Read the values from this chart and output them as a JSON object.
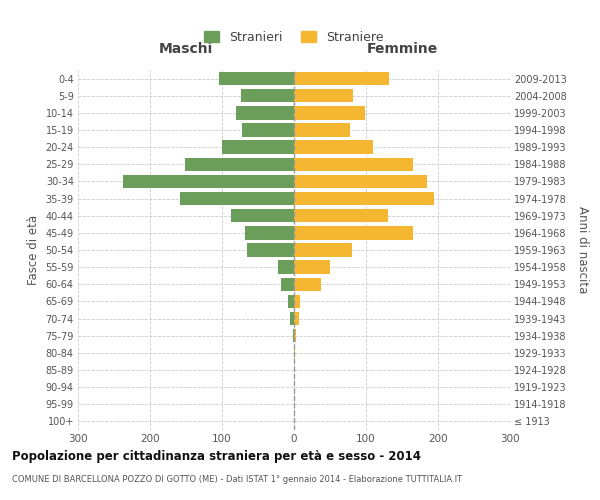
{
  "age_groups": [
    "100+",
    "95-99",
    "90-94",
    "85-89",
    "80-84",
    "75-79",
    "70-74",
    "65-69",
    "60-64",
    "55-59",
    "50-54",
    "45-49",
    "40-44",
    "35-39",
    "30-34",
    "25-29",
    "20-24",
    "15-19",
    "10-14",
    "5-9",
    "0-4"
  ],
  "birth_years": [
    "≤ 1913",
    "1914-1918",
    "1919-1923",
    "1924-1928",
    "1929-1933",
    "1934-1938",
    "1939-1943",
    "1944-1948",
    "1949-1953",
    "1954-1958",
    "1959-1963",
    "1964-1968",
    "1969-1973",
    "1974-1978",
    "1979-1983",
    "1984-1988",
    "1989-1993",
    "1994-1998",
    "1999-2003",
    "2004-2008",
    "2009-2013"
  ],
  "maschi": [
    0,
    0,
    0,
    0,
    0,
    1,
    6,
    8,
    18,
    22,
    65,
    68,
    88,
    158,
    238,
    152,
    100,
    72,
    80,
    74,
    104
  ],
  "femmine": [
    0,
    0,
    0,
    0,
    2,
    3,
    7,
    8,
    38,
    50,
    80,
    165,
    130,
    195,
    185,
    165,
    110,
    78,
    98,
    82,
    132
  ],
  "male_color": "#6a9e5a",
  "female_color": "#f5b731",
  "xlim": 300,
  "title": "Popolazione per cittadinanza straniera per età e sesso - 2014",
  "subtitle": "COMUNE DI BARCELLONA POZZO DI GOTTO (ME) - Dati ISTAT 1° gennaio 2014 - Elaborazione TUTTITALIA.IT",
  "xlabel_left": "Maschi",
  "xlabel_right": "Femmine",
  "ylabel_left": "Fasce di età",
  "ylabel_right": "Anni di nascita",
  "legend_male": "Stranieri",
  "legend_female": "Straniere",
  "background_color": "#ffffff",
  "grid_color": "#cccccc"
}
